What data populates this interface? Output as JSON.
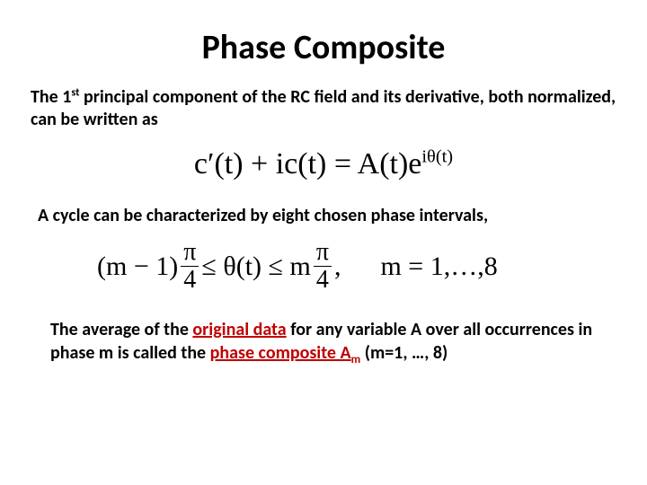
{
  "colors": {
    "background": "#ffffff",
    "text": "#000000",
    "accent_red": "#c00000"
  },
  "title": "Phase Composite",
  "para1": {
    "t1": "The 1",
    "sup": "st",
    "t2": " principal component of the RC field and its derivative, both normalized, can be written as"
  },
  "eq1": {
    "lhs": "c′(t) + ic(t) = A(t)e",
    "exp": "iθ(t)"
  },
  "para2": "A cycle can be characterized by eight chosen phase intervals,",
  "eq2": {
    "lhs_prefix": "(m − 1)",
    "pi": "π",
    "four": "4",
    "mid": " ≤ θ(t) ≤ m",
    "comma": ",",
    "mside": "m = 1,…,8"
  },
  "para3": {
    "t1": "The average of the ",
    "ul1": "original data",
    "t2": " for any variable A over all occurrences in phase m is called the ",
    "ul2": "phase composite A",
    "ul2_sub": "m",
    "t3": " (m=1, …, 8)"
  }
}
